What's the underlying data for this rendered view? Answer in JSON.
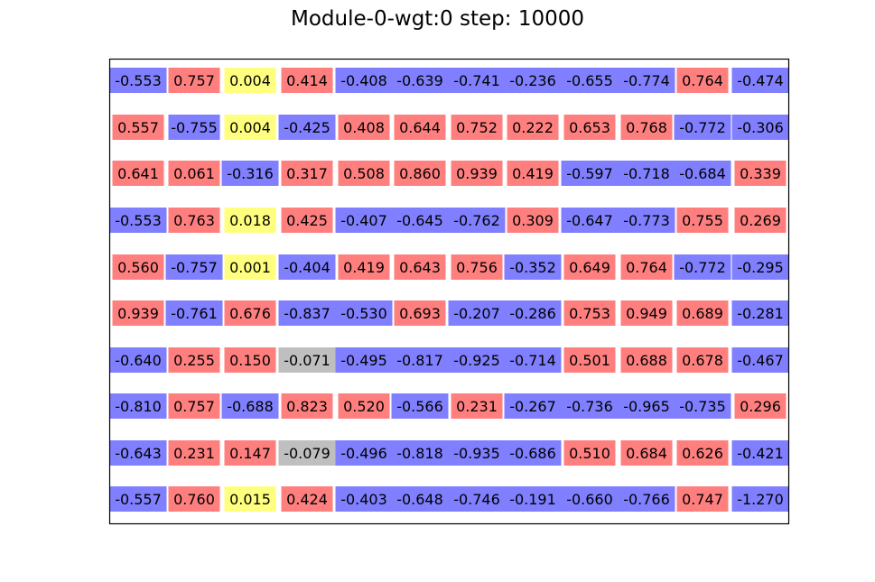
{
  "figure": {
    "title": "Module-0-wgt:0 step: 10000"
  },
  "colors": {
    "positive": "#ff7f7f",
    "negative": "#7f7fff",
    "near_zero_positive": "#ffff7f",
    "near_zero_negative": "#bfbfbf",
    "frame": "#000000",
    "text": "#000000"
  },
  "chart_data": {
    "type": "table",
    "title": "Module-0-wgt:0 step: 10000",
    "rows": 10,
    "cols": 12,
    "values": [
      [
        "-0.553",
        "0.757",
        "0.004",
        "0.414",
        "-0.408",
        "-0.639",
        "-0.741",
        "-0.236",
        "-0.655",
        "-0.774",
        "0.764",
        "-0.474"
      ],
      [
        "0.557",
        "-0.755",
        "0.004",
        "-0.425",
        "0.408",
        "0.644",
        "0.752",
        "0.222",
        "0.653",
        "0.768",
        "-0.772",
        "-0.306"
      ],
      [
        "0.641",
        "0.061",
        "-0.316",
        "0.317",
        "0.508",
        "0.860",
        "0.939",
        "0.419",
        "-0.597",
        "-0.718",
        "-0.684",
        "0.339"
      ],
      [
        "-0.553",
        "0.763",
        "0.018",
        "0.425",
        "-0.407",
        "-0.645",
        "-0.762",
        "0.309",
        "-0.647",
        "-0.773",
        "0.755",
        "0.269"
      ],
      [
        "0.560",
        "-0.757",
        "0.001",
        "-0.404",
        "0.419",
        "0.643",
        "0.756",
        "-0.352",
        "0.649",
        "0.764",
        "-0.772",
        "-0.295"
      ],
      [
        "0.939",
        "-0.761",
        "0.676",
        "-0.837",
        "-0.530",
        "0.693",
        "-0.207",
        "-0.286",
        "0.753",
        "0.949",
        "0.689",
        "-0.281"
      ],
      [
        "-0.640",
        "0.255",
        "0.150",
        "-0.071",
        "-0.495",
        "-0.817",
        "-0.925",
        "-0.714",
        "0.501",
        "0.688",
        "0.678",
        "-0.467"
      ],
      [
        "-0.810",
        "0.757",
        "-0.688",
        "0.823",
        "0.520",
        "-0.566",
        "0.231",
        "-0.267",
        "-0.736",
        "-0.965",
        "-0.735",
        "0.296"
      ],
      [
        "-0.643",
        "0.231",
        "0.147",
        "-0.079",
        "-0.496",
        "-0.818",
        "-0.935",
        "-0.686",
        "0.510",
        "0.684",
        "0.626",
        "-0.421"
      ],
      [
        "-0.557",
        "0.760",
        "0.015",
        "0.424",
        "-0.403",
        "-0.648",
        "-0.746",
        "-0.191",
        "-0.660",
        "-0.766",
        "0.747",
        "-1.270"
      ]
    ],
    "wide_cells": [
      [
        0,
        0
      ],
      [
        0,
        4
      ],
      [
        0,
        5
      ],
      [
        0,
        6
      ],
      [
        0,
        7
      ],
      [
        0,
        8
      ],
      [
        0,
        9
      ],
      [
        0,
        11
      ],
      [
        1,
        3
      ],
      [
        1,
        10
      ],
      [
        1,
        11
      ],
      [
        2,
        2
      ],
      [
        2,
        8
      ],
      [
        2,
        9
      ],
      [
        2,
        10
      ],
      [
        3,
        0
      ],
      [
        3,
        4
      ],
      [
        3,
        5
      ],
      [
        3,
        6
      ],
      [
        3,
        8
      ],
      [
        3,
        9
      ],
      [
        4,
        1
      ],
      [
        4,
        3
      ],
      [
        4,
        7
      ],
      [
        4,
        10
      ],
      [
        4,
        11
      ],
      [
        5,
        1
      ],
      [
        5,
        3
      ],
      [
        5,
        4
      ],
      [
        5,
        6
      ],
      [
        5,
        7
      ],
      [
        5,
        11
      ],
      [
        6,
        0
      ],
      [
        6,
        3
      ],
      [
        6,
        4
      ],
      [
        6,
        5
      ],
      [
        6,
        6
      ],
      [
        6,
        7
      ],
      [
        6,
        11
      ],
      [
        7,
        0
      ],
      [
        7,
        2
      ],
      [
        7,
        5
      ],
      [
        7,
        7
      ],
      [
        7,
        8
      ],
      [
        7,
        9
      ],
      [
        7,
        10
      ],
      [
        8,
        0
      ],
      [
        8,
        3
      ],
      [
        8,
        4
      ],
      [
        8,
        5
      ],
      [
        8,
        6
      ],
      [
        8,
        7
      ],
      [
        8,
        11
      ],
      [
        9,
        0
      ],
      [
        9,
        4
      ],
      [
        9,
        5
      ],
      [
        9,
        6
      ],
      [
        9,
        7
      ],
      [
        9,
        8
      ],
      [
        9,
        9
      ],
      [
        9,
        11
      ]
    ],
    "color_rule": "positive=red, negative=blue, |v|<0.05 positive=yellow, |v|<0.1 negative=gray",
    "grid": false,
    "xlabel": "",
    "ylabel": ""
  }
}
